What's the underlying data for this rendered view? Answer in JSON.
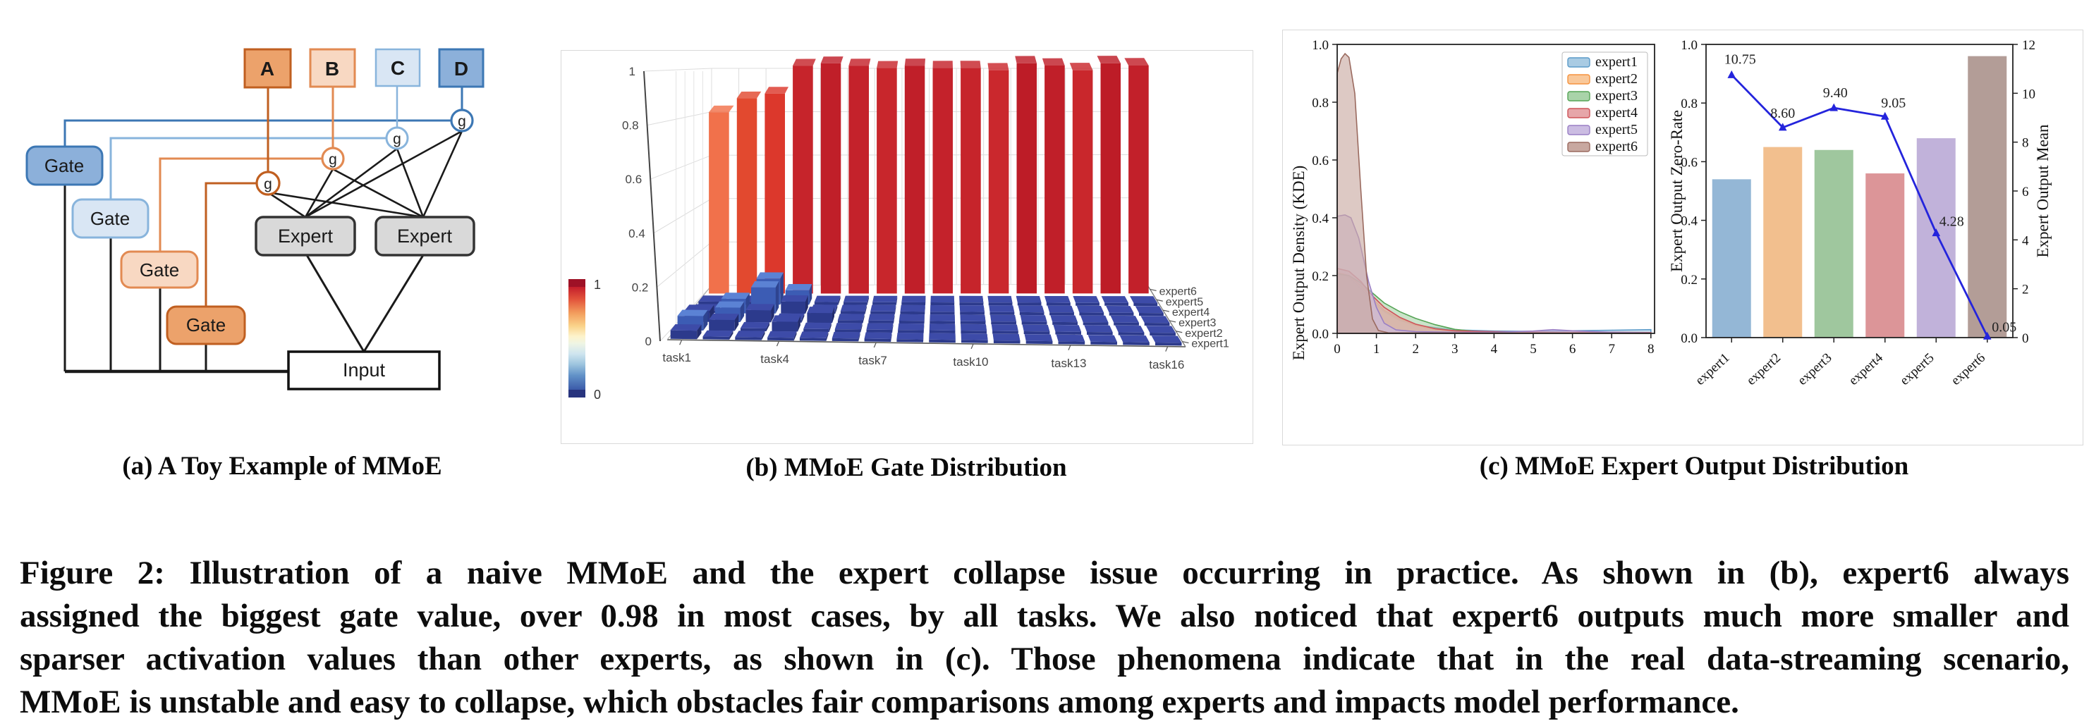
{
  "subcaptions": {
    "a": "(a) A Toy Example of MMoE",
    "b": "(b) MMoE Gate Distribution",
    "c": "(c) MMoE Expert Output Distribution"
  },
  "caption": {
    "lines": [
      "Figure 2: Illustration of a naive MMoE and the expert collapse issue occurring in practice. As shown in (b), expert6 always",
      "assigned the biggest gate value, over 0.98 in most cases, by all tasks. We also noticed that expert6 outputs much more smaller and",
      "sparser activation values than other experts, as shown in (c). Those phenomena indicate that in the real data-streaming scenario,",
      "MMoE is unstable and easy to collapse, which obstacles fair comparisons among experts and impacts model performance."
    ]
  },
  "diagram_a": {
    "task_boxes": [
      {
        "label": "A",
        "fill": "#ECA26B",
        "stroke": "#C05F20"
      },
      {
        "label": "B",
        "fill": "#F8D8C2",
        "stroke": "#E28A52"
      },
      {
        "label": "C",
        "fill": "#D9E6F4",
        "stroke": "#88B4DC"
      },
      {
        "label": "D",
        "fill": "#8CB0DA",
        "stroke": "#3C77B4"
      }
    ],
    "gates": [
      {
        "label": "Gate",
        "fill": "#8CB0DA",
        "stroke": "#3C77B4"
      },
      {
        "label": "Gate",
        "fill": "#D9E6F4",
        "stroke": "#88B4DC"
      },
      {
        "label": "Gate",
        "fill": "#F8D8C2",
        "stroke": "#E28A52"
      },
      {
        "label": "Gate",
        "fill": "#ECA26B",
        "stroke": "#C05F20"
      }
    ],
    "g_nodes": [
      {
        "label": "g",
        "stroke": "#C05F20"
      },
      {
        "label": "g",
        "stroke": "#E28A52"
      },
      {
        "label": "g",
        "stroke": "#88B4DC"
      },
      {
        "label": "g",
        "stroke": "#3C77B4"
      }
    ],
    "experts": [
      {
        "label": "Expert"
      },
      {
        "label": "Expert"
      }
    ],
    "input": {
      "label": "Input"
    }
  },
  "chart_data": [
    {
      "type": "bar",
      "variant": "3d",
      "title": "(b) MMoE Gate Distribution",
      "x_categories": [
        "task1",
        "task2",
        "task3",
        "task4",
        "task5",
        "task6",
        "task7",
        "task8",
        "task9",
        "task10",
        "task11",
        "task12",
        "task13",
        "task14",
        "task15",
        "task16"
      ],
      "x_tick_labels": [
        "task1",
        "task4",
        "task7",
        "task10",
        "task13",
        "task16"
      ],
      "x_tick_index": [
        0,
        3,
        6,
        9,
        12,
        15
      ],
      "y_categories": [
        "expert1",
        "expert2",
        "expert3",
        "expert4",
        "expert5",
        "expert6"
      ],
      "zlim": [
        0,
        1
      ],
      "z_tick_labels": [
        "0",
        "0.2",
        "0.4",
        "0.6",
        "0.8",
        "1"
      ],
      "z_tick_values": [
        0,
        0.2,
        0.4,
        0.6,
        0.8,
        1
      ],
      "colorbar": {
        "top_label": "1",
        "bottom_label": "0",
        "min": 0,
        "max": 1
      },
      "expert6_gate_values": [
        0.78,
        0.84,
        0.86,
        0.98,
        0.99,
        0.98,
        0.97,
        0.98,
        0.97,
        0.97,
        0.96,
        0.99,
        0.98,
        0.96,
        0.99,
        0.98
      ],
      "expert6_bar_colors": [
        "#F1714B",
        "#E2492F",
        "#DC382C",
        "#C6242B",
        "#C01F29",
        "#C4222B",
        "#C8262C",
        "#C01F29",
        "#C4222B",
        "#C6242B",
        "#CA282D",
        "#BD1C27",
        "#C01F29",
        "#C9272C",
        "#BD1C27",
        "#C2202A"
      ],
      "low_gate_default": 0.012,
      "low_gate_bumps": [
        [
          0,
          0,
          0.025
        ],
        [
          0,
          1,
          0.05
        ],
        [
          1,
          1,
          0.035
        ],
        [
          3,
          1,
          0.03
        ],
        [
          0,
          2,
          0.035
        ],
        [
          1,
          2,
          0.05
        ],
        [
          2,
          2,
          0.04
        ],
        [
          4,
          2,
          0.03
        ],
        [
          1,
          3,
          0.05
        ],
        [
          2,
          3,
          0.1
        ],
        [
          3,
          3,
          0.04
        ],
        [
          2,
          4,
          0.1
        ],
        [
          3,
          4,
          0.05
        ]
      ],
      "tile_colors": {
        "front": "#2C3A8C",
        "top": "#3D4BA8",
        "side": "#232D6E",
        "bump_front": "#3C5CB4",
        "bump_top": "#5B82D4",
        "bump_side": "#2E4490"
      }
    },
    {
      "type": "area",
      "subtype": "kde",
      "ylabel": "Expert Output Density (KDE)",
      "xlim": [
        0,
        8
      ],
      "ylim": [
        0,
        1.0
      ],
      "x_tick_labels": [
        "0",
        "1",
        "2",
        "3",
        "4",
        "5",
        "6",
        "7",
        "8"
      ],
      "y_tick_labels": [
        "0.0",
        "0.2",
        "0.4",
        "0.6",
        "0.8",
        "1.0"
      ],
      "legend_position": "upper right",
      "series": [
        {
          "name": "expert1",
          "color": "#5B9BC9",
          "fill": "#A9CBE3",
          "points": [
            [
              0,
              0.21
            ],
            [
              0.3,
              0.195
            ],
            [
              0.6,
              0.155
            ],
            [
              0.9,
              0.11
            ],
            [
              1.2,
              0.075
            ],
            [
              1.6,
              0.045
            ],
            [
              2,
              0.028
            ],
            [
              3,
              0.012
            ],
            [
              4,
              0.008
            ],
            [
              5,
              0.007
            ],
            [
              6,
              0.009
            ],
            [
              7,
              0.011
            ],
            [
              8,
              0.013
            ]
          ]
        },
        {
          "name": "expert2",
          "color": "#F5923E",
          "fill": "#F9C89A",
          "points": [
            [
              0,
              0.21
            ],
            [
              0.3,
              0.2
            ],
            [
              0.6,
              0.165
            ],
            [
              0.9,
              0.12
            ],
            [
              1.2,
              0.08
            ],
            [
              1.6,
              0.05
            ],
            [
              2,
              0.028
            ],
            [
              2.5,
              0.013
            ],
            [
              3,
              0.007
            ],
            [
              4,
              0.004
            ],
            [
              8,
              0.002
            ]
          ]
        },
        {
          "name": "expert3",
          "color": "#55A455",
          "fill": "#A9D3A9",
          "points": [
            [
              0,
              0.205
            ],
            [
              0.3,
              0.2
            ],
            [
              0.6,
              0.175
            ],
            [
              0.9,
              0.14
            ],
            [
              1.2,
              0.105
            ],
            [
              1.6,
              0.075
            ],
            [
              2,
              0.052
            ],
            [
              2.5,
              0.03
            ],
            [
              3,
              0.014
            ],
            [
              3.5,
              0.007
            ],
            [
              4,
              0.004
            ],
            [
              8,
              0.002
            ]
          ]
        },
        {
          "name": "expert4",
          "color": "#CE5359",
          "fill": "#E6A6A9",
          "points": [
            [
              0,
              0.225
            ],
            [
              0.3,
              0.215
            ],
            [
              0.6,
              0.18
            ],
            [
              0.9,
              0.13
            ],
            [
              1.2,
              0.09
            ],
            [
              1.6,
              0.055
            ],
            [
              2,
              0.032
            ],
            [
              2.5,
              0.016
            ],
            [
              3,
              0.009
            ],
            [
              4,
              0.006
            ],
            [
              5,
              0.005
            ],
            [
              6,
              0.004
            ],
            [
              7,
              0.004
            ],
            [
              8,
              0.003
            ]
          ]
        },
        {
          "name": "expert5",
          "color": "#9A7FC5",
          "fill": "#CBBCE2",
          "points": [
            [
              0,
              0.405
            ],
            [
              0.2,
              0.41
            ],
            [
              0.35,
              0.4
            ],
            [
              0.55,
              0.33
            ],
            [
              0.8,
              0.18
            ],
            [
              1.0,
              0.09
            ],
            [
              1.2,
              0.035
            ],
            [
              1.5,
              0.012
            ],
            [
              2,
              0.006
            ],
            [
              3,
              0.004
            ],
            [
              4,
              0.004
            ],
            [
              5,
              0.008
            ],
            [
              5.5,
              0.013
            ],
            [
              6,
              0.009
            ],
            [
              7,
              0.004
            ],
            [
              8,
              0.002
            ]
          ]
        },
        {
          "name": "expert6",
          "color": "#9A6A5F",
          "fill": "#C8A8A0",
          "points": [
            [
              0,
              0.9
            ],
            [
              0.1,
              0.95
            ],
            [
              0.2,
              0.968
            ],
            [
              0.3,
              0.955
            ],
            [
              0.45,
              0.83
            ],
            [
              0.6,
              0.5
            ],
            [
              0.75,
              0.2
            ],
            [
              0.9,
              0.05
            ],
            [
              1.05,
              0.01
            ],
            [
              1.3,
              0.002
            ],
            [
              8,
              0.001
            ]
          ]
        }
      ]
    },
    {
      "type": "bar",
      "subtype": "bar_line_dual_axis",
      "categories": [
        "expert1",
        "expert2",
        "expert3",
        "expert4",
        "expert5",
        "expert6"
      ],
      "ylabel_left": "Expert Output Zero-Rate",
      "ylabel_right": "Expert Output Mean",
      "ylim_left": [
        0,
        1.0
      ],
      "ylim_right": [
        0,
        12
      ],
      "y_tick_labels_left": [
        "0.0",
        "0.2",
        "0.4",
        "0.6",
        "0.8",
        "1.0"
      ],
      "y_tick_values_left": [
        0,
        0.2,
        0.4,
        0.6,
        0.8,
        1.0
      ],
      "y_tick_labels_right": [
        "0",
        "2",
        "4",
        "6",
        "8",
        "10",
        "12"
      ],
      "y_tick_values_right": [
        0,
        2,
        4,
        6,
        8,
        10,
        12
      ],
      "bar_series": {
        "name": "Expert Output Zero-Rate",
        "values": [
          0.54,
          0.65,
          0.64,
          0.56,
          0.68,
          0.96
        ],
        "colors": [
          "#94B7D6",
          "#F2BF8E",
          "#9FC79E",
          "#DC9598",
          "#C1B2DA",
          "#B39D97"
        ]
      },
      "line_series": {
        "name": "Expert Output Mean",
        "color": "#2424DC",
        "values": [
          10.75,
          8.6,
          9.4,
          9.05,
          4.28,
          0.05
        ],
        "labels": [
          "10.75",
          "8.60",
          "9.40",
          "9.05",
          "4.28",
          "0.05"
        ]
      }
    }
  ]
}
